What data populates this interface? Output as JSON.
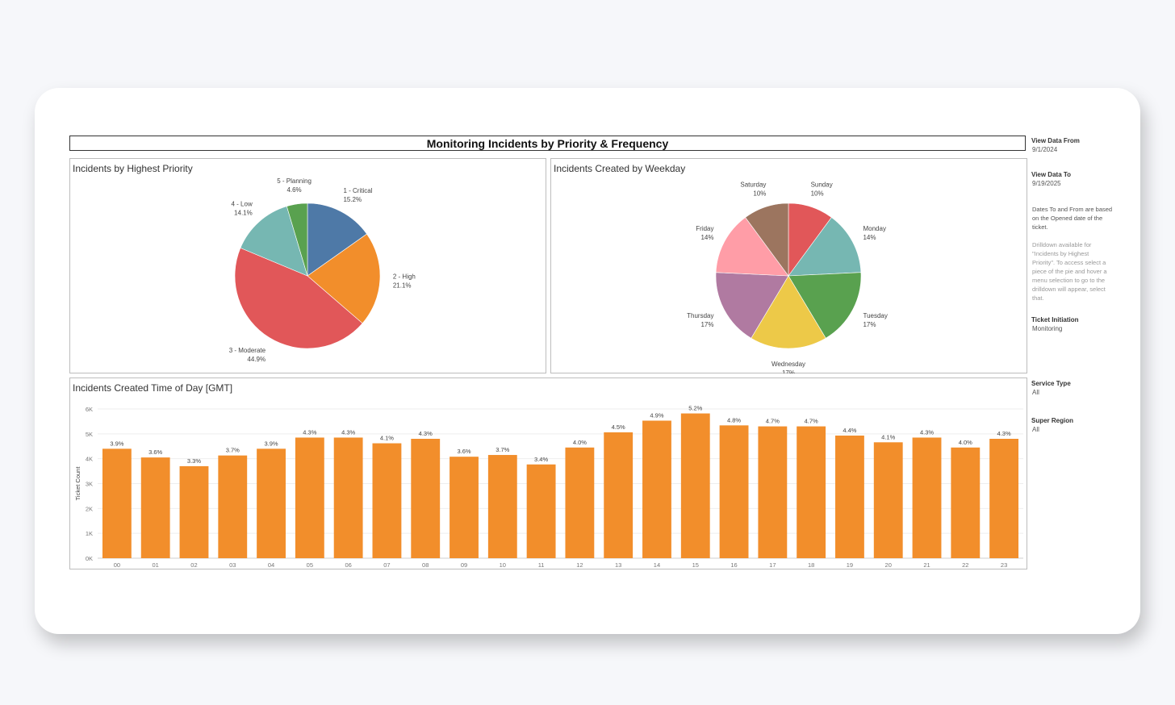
{
  "dashboard": {
    "title": "Monitoring Incidents by Priority & Frequency"
  },
  "filters": {
    "view_from_label": "View Data From",
    "view_from_value": "9/1/2024",
    "view_to_label": "View Data To",
    "view_to_value": "9/19/2025",
    "dates_note": "Dates To and From are based on the Opened date of the ticket.",
    "drill_note": "Drilldown available for \"Incidents by Highest Priority\". To access select a piece of the pie and hover a menu selection to go to the drilldown will appear, select that.",
    "ticket_initiation_label": "Ticket Initiation",
    "ticket_initiation_value": "Monitoring",
    "service_type_label": "Service Type",
    "service_type_value": "All",
    "super_region_label": "Super Region",
    "super_region_value": "All"
  },
  "chart_data": [
    {
      "type": "pie",
      "title": "Incidents by Highest Priority",
      "slices": [
        {
          "label": "1 - Critical",
          "pct_label": "15.2%",
          "value": 15.2,
          "color": "#4e79a7"
        },
        {
          "label": "2 - High",
          "pct_label": "21.1%",
          "value": 21.1,
          "color": "#f28e2b"
        },
        {
          "label": "3 - Moderate",
          "pct_label": "44.9%",
          "value": 44.9,
          "color": "#e15759"
        },
        {
          "label": "4 - Low",
          "pct_label": "14.1%",
          "value": 14.1,
          "color": "#76b7b2"
        },
        {
          "label": "5 - Planning",
          "pct_label": "4.6%",
          "value": 4.6,
          "color": "#59a14f"
        }
      ]
    },
    {
      "type": "pie",
      "title": "Incidents Created by Weekday",
      "slices": [
        {
          "label": "Sunday",
          "pct_label": "10%",
          "value": 10,
          "color": "#e15759"
        },
        {
          "label": "Monday",
          "pct_label": "14%",
          "value": 14,
          "color": "#76b7b2"
        },
        {
          "label": "Tuesday",
          "pct_label": "17%",
          "value": 17,
          "color": "#59a14f"
        },
        {
          "label": "Wednesday",
          "pct_label": "17%",
          "value": 17,
          "color": "#edc948"
        },
        {
          "label": "Thursday",
          "pct_label": "17%",
          "value": 17,
          "color": "#b07aa1"
        },
        {
          "label": "Friday",
          "pct_label": "14%",
          "value": 14,
          "color": "#ff9da7"
        },
        {
          "label": "Saturday",
          "pct_label": "10%",
          "value": 10,
          "color": "#9c755f"
        }
      ]
    },
    {
      "type": "bar",
      "title": "Incidents Created Time of Day [GMT]",
      "xlabel": "",
      "ylabel": "Ticket Count",
      "ylim": [
        0,
        6000
      ],
      "yticks": [
        0,
        1000,
        2000,
        3000,
        4000,
        5000,
        6000
      ],
      "ytick_labels": [
        "0K",
        "1K",
        "2K",
        "3K",
        "4K",
        "5K",
        "6K"
      ],
      "grid": true,
      "color": "#f28e2b",
      "categories": [
        "00",
        "01",
        "02",
        "03",
        "04",
        "05",
        "06",
        "07",
        "08",
        "09",
        "10",
        "11",
        "12",
        "13",
        "14",
        "15",
        "16",
        "17",
        "18",
        "19",
        "20",
        "21",
        "22",
        "23"
      ],
      "values": [
        4400,
        4050,
        3700,
        4130,
        4400,
        4850,
        4850,
        4620,
        4800,
        4080,
        4150,
        3770,
        4450,
        5060,
        5530,
        5820,
        5340,
        5300,
        5300,
        4930,
        4660,
        4850,
        4450,
        4800
      ],
      "data_labels": [
        "3.9%",
        "3.6%",
        "3.3%",
        "3.7%",
        "3.9%",
        "4.3%",
        "4.3%",
        "4.1%",
        "4.3%",
        "3.6%",
        "3.7%",
        "3.4%",
        "4.0%",
        "4.5%",
        "4.9%",
        "5.2%",
        "4.8%",
        "4.7%",
        "4.7%",
        "4.4%",
        "4.1%",
        "4.3%",
        "4.0%",
        "4.3%"
      ]
    }
  ]
}
